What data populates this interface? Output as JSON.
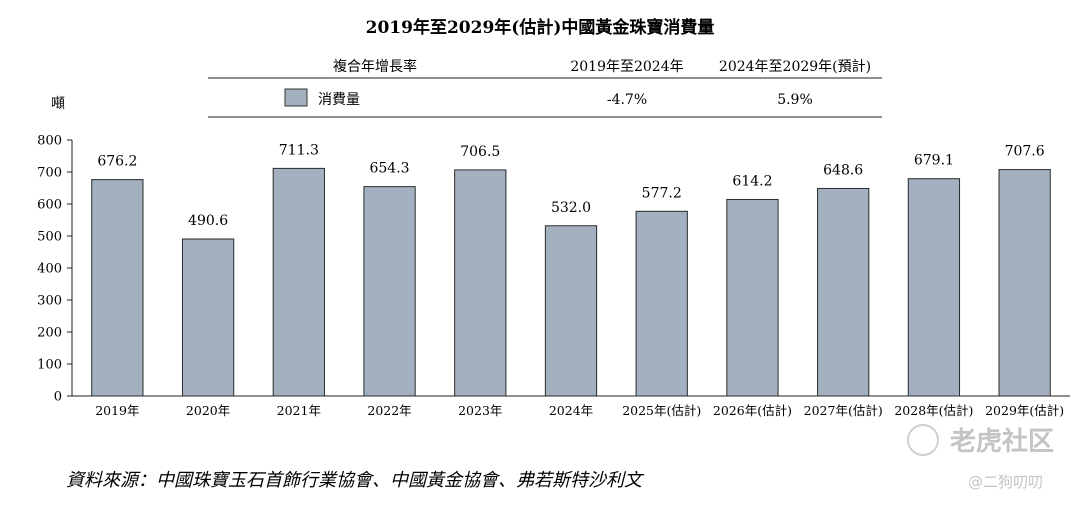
{
  "chart_data": {
    "type": "bar",
    "title": "2019年至2029年(估計)中國黃金珠寶消費量",
    "ylabel": "噸",
    "ylim": [
      0,
      800
    ],
    "yticks": [
      0,
      100,
      200,
      300,
      400,
      500,
      600,
      700,
      800
    ],
    "grid": false,
    "categories": [
      "2019年",
      "2020年",
      "2021年",
      "2022年",
      "2023年",
      "2024年",
      "2025年(估計)",
      "2026年(估計)",
      "2027年(估計)",
      "2028年(估計)",
      "2029年(估計)"
    ],
    "series": [
      {
        "name": "消費量",
        "color": "#a3b0c0",
        "values": [
          676.2,
          490.6,
          711.3,
          654.3,
          706.5,
          532.0,
          577.2,
          614.2,
          648.6,
          679.1,
          707.6
        ],
        "value_labels": [
          "676.2",
          "490.6",
          "711.3",
          "654.3",
          "706.5",
          "532.0",
          "577.2",
          "614.2",
          "648.6",
          "679.1",
          "707.6"
        ]
      }
    ],
    "cagr_table": {
      "header": "複合年增長率",
      "columns": [
        "2019年至2024年",
        "2024年至2029年(預計)"
      ],
      "rows": [
        {
          "label": "消費量",
          "values": [
            "-4.7%",
            "5.9%"
          ]
        }
      ]
    }
  },
  "source": "資料來源：中國珠寶玉石首飾行業協會、中國黃金協會、弗若斯特沙利文",
  "watermark": {
    "brand": "老虎社区",
    "handle": "@二狗叨叨"
  }
}
